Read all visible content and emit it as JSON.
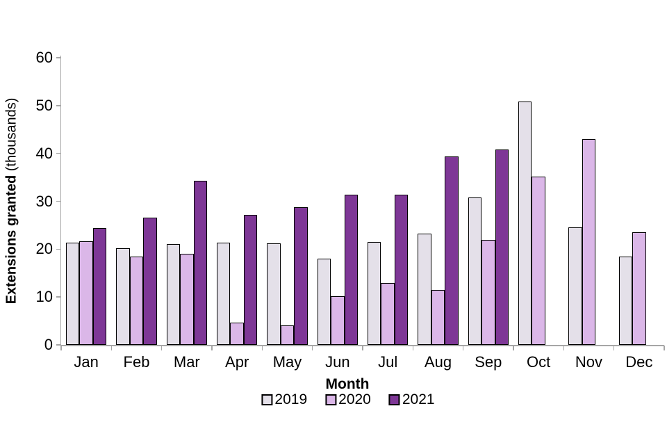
{
  "figure": {
    "background": "#ffffff",
    "y_axis": {
      "title_bold": "Extensions granted",
      "title_unit": " (thousands)",
      "tick_labels": [
        "0",
        "10",
        "20",
        "30",
        "40",
        "50",
        "60"
      ]
    },
    "x_axis": {
      "title": "Month"
    }
  },
  "chart_data": {
    "type": "bar",
    "title": "",
    "xlabel": "Month",
    "ylabel": "Extensions granted (thousands)",
    "categories": [
      "Jan",
      "Feb",
      "Mar",
      "Apr",
      "May",
      "Jun",
      "Jul",
      "Aug",
      "Sep",
      "Oct",
      "Nov",
      "Dec"
    ],
    "series": [
      {
        "name": "2019",
        "color": "#E4E0E9",
        "values": [
          21.4,
          20.2,
          21.1,
          21.4,
          21.2,
          18.0,
          21.5,
          23.3,
          30.8,
          50.8,
          24.5,
          18.4
        ]
      },
      {
        "name": "2020",
        "color": "#DBB7E8",
        "values": [
          21.6,
          18.4,
          19.0,
          4.7,
          4.0,
          10.2,
          13.0,
          11.5,
          21.9,
          35.1,
          43.0,
          23.6
        ]
      },
      {
        "name": "2021",
        "color": "#7E3796",
        "values": [
          24.4,
          26.6,
          34.3,
          27.2,
          28.8,
          31.4,
          31.4,
          39.4,
          40.8,
          null,
          null,
          null
        ]
      }
    ],
    "ylim": [
      0,
      60
    ],
    "ytick_step": 10,
    "grid": false,
    "legend_position": "bottom",
    "bar_border_color": "#000000",
    "axis_color": "#A6A6A6",
    "text_color": "#000000"
  }
}
